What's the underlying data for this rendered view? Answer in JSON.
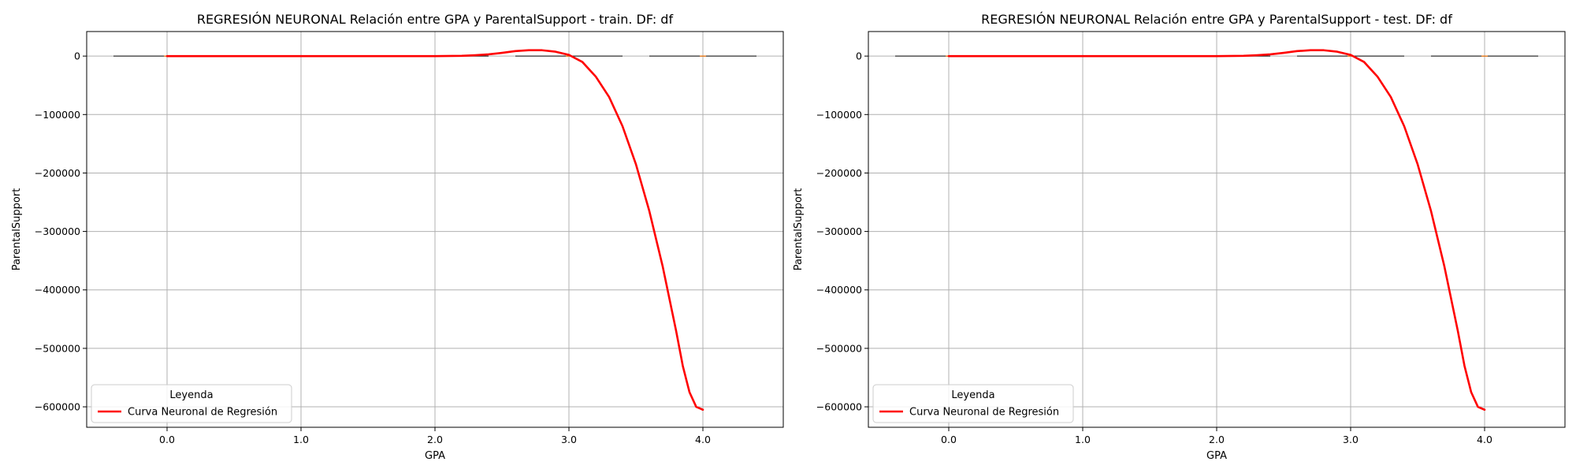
{
  "chart_data": [
    {
      "type": "line",
      "title": "REGRESIÓN NEURONAL Relación entre GPA y ParentalSupport - train. DF: df",
      "xlabel": "GPA",
      "ylabel": "ParentalSupport",
      "xlim": [
        -0.6,
        4.6
      ],
      "ylim": [
        -635000,
        42000
      ],
      "xticks": [
        0.0,
        1.0,
        2.0,
        3.0,
        4.0
      ],
      "xtick_labels": [
        "0.0",
        "1.0",
        "2.0",
        "3.0",
        "4.0"
      ],
      "yticks": [
        0,
        -100000,
        -200000,
        -300000,
        -400000,
        -500000,
        -600000
      ],
      "ytick_labels": [
        "0",
        "−100000",
        "−200000",
        "−300000",
        "−400000",
        "−500000",
        "−600000"
      ],
      "grid": true,
      "legend": {
        "title": "Leyenda",
        "location": "lower-left",
        "entries": [
          "Curva Neuronal de Regresión"
        ]
      },
      "series": [
        {
          "name": "Curva Neuronal de Regresión",
          "color": "#ff0000",
          "x": [
            0.0,
            0.2,
            0.4,
            0.6,
            0.8,
            1.0,
            1.2,
            1.4,
            1.6,
            1.8,
            2.0,
            2.2,
            2.3,
            2.4,
            2.5,
            2.6,
            2.7,
            2.8,
            2.9,
            3.0,
            3.1,
            3.2,
            3.3,
            3.4,
            3.5,
            3.6,
            3.7,
            3.8,
            3.85,
            3.9,
            3.95,
            4.0
          ],
          "y": [
            0,
            0,
            0,
            0,
            0,
            0,
            0,
            0,
            0,
            0,
            0,
            500,
            1500,
            3000,
            5500,
            8500,
            10000,
            10000,
            7500,
            2000,
            -10000,
            -35000,
            -70000,
            -120000,
            -185000,
            -265000,
            -360000,
            -470000,
            -530000,
            -575000,
            -600000,
            -605000
          ]
        }
      ],
      "boxplots": [
        {
          "range": [
            -0.4,
            1.2
          ],
          "median": 0.0
        },
        {
          "range": [
            0.8,
            2.4
          ],
          "median": 1.0
        },
        {
          "range": [
            2.6,
            3.4
          ],
          "median": 3.0
        },
        {
          "range": [
            3.6,
            4.4
          ],
          "median": 4.0
        }
      ]
    },
    {
      "type": "line",
      "title": "REGRESIÓN NEURONAL Relación entre GPA y ParentalSupport - test. DF: df",
      "xlabel": "GPA",
      "ylabel": "ParentalSupport",
      "xlim": [
        -0.6,
        4.6
      ],
      "ylim": [
        -635000,
        42000
      ],
      "xticks": [
        0.0,
        1.0,
        2.0,
        3.0,
        4.0
      ],
      "xtick_labels": [
        "0.0",
        "1.0",
        "2.0",
        "3.0",
        "4.0"
      ],
      "yticks": [
        0,
        -100000,
        -200000,
        -300000,
        -400000,
        -500000,
        -600000
      ],
      "ytick_labels": [
        "0",
        "−100000",
        "−200000",
        "−300000",
        "−400000",
        "−500000",
        "−600000"
      ],
      "grid": true,
      "legend": {
        "title": "Leyenda",
        "location": "lower-left",
        "entries": [
          "Curva Neuronal de Regresión"
        ]
      },
      "series": [
        {
          "name": "Curva Neuronal de Regresión",
          "color": "#ff0000",
          "x": [
            0.0,
            0.2,
            0.4,
            0.6,
            0.8,
            1.0,
            1.2,
            1.4,
            1.6,
            1.8,
            2.0,
            2.2,
            2.3,
            2.4,
            2.5,
            2.6,
            2.7,
            2.8,
            2.9,
            3.0,
            3.1,
            3.2,
            3.3,
            3.4,
            3.5,
            3.6,
            3.7,
            3.8,
            3.85,
            3.9,
            3.95,
            4.0
          ],
          "y": [
            0,
            0,
            0,
            0,
            0,
            0,
            0,
            0,
            0,
            0,
            0,
            500,
            1500,
            3000,
            5500,
            8500,
            10000,
            10000,
            7500,
            2000,
            -10000,
            -35000,
            -70000,
            -120000,
            -185000,
            -265000,
            -360000,
            -470000,
            -530000,
            -575000,
            -600000,
            -605000
          ]
        }
      ],
      "boxplots": [
        {
          "range": [
            -0.4,
            1.2
          ],
          "median": 0.0
        },
        {
          "range": [
            0.8,
            2.4
          ],
          "median": 1.0
        },
        {
          "range": [
            2.6,
            3.4
          ],
          "median": 3.0
        },
        {
          "range": [
            3.6,
            4.4
          ],
          "median": 4.0
        }
      ]
    }
  ]
}
